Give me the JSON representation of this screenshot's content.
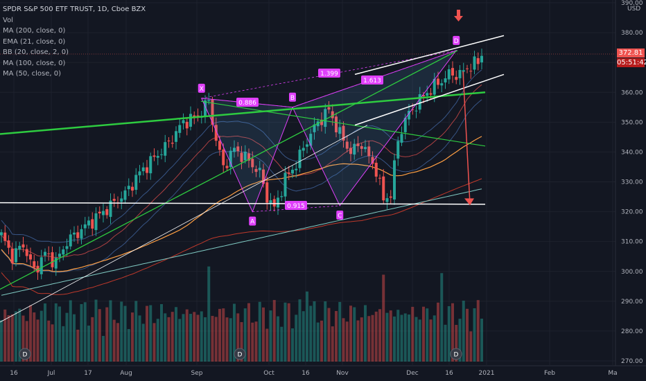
{
  "legend": {
    "title": "SPDR S&P 500 ETF TRUST, 1D, Cboe BZX",
    "vol": "Vol",
    "ma200": "MA (200, close, 0)",
    "ema21": "EMA (21, close, 0)",
    "bb": "BB (20, close, 2, 0)",
    "ma100": "MA (100, close, 0)",
    "ma50": "MA (50, close, 0)"
  },
  "axis": {
    "currency": "USD",
    "last_price": "372.81",
    "countdown": "05:51:42"
  },
  "colors": {
    "background": "#131722",
    "up": "#26a69a",
    "down": "#ef5350",
    "pattern": "#e040fb",
    "trend_green": "#2ecc40",
    "countdown_bg": "#b71c1c"
  },
  "chart_data": {
    "type": "candlestick",
    "title": "SPDR S&P 500 ETF TRUST, 1D, Cboe BZX",
    "ylim": [
      268,
      392
    ],
    "y_ticks": [
      270,
      280,
      290,
      300,
      310,
      320,
      330,
      340,
      350,
      360,
      370,
      380,
      390
    ],
    "x_ticks": [
      "16",
      "Jul",
      "17",
      "Aug",
      "Sep",
      "Oct",
      "16",
      "Nov",
      "Dec",
      "16",
      "2021",
      "Feb",
      "Ma"
    ],
    "harmonic_points": [
      {
        "label": "X",
        "value": 358
      },
      {
        "label": "A",
        "value": 320
      },
      {
        "label": "B",
        "value": 355
      },
      {
        "label": "C",
        "value": 322
      },
      {
        "label": "D",
        "value": 374
      }
    ],
    "ratios": [
      "0.886",
      "0.915",
      "1.399",
      "1.613"
    ],
    "event_markers": [
      "D",
      "D",
      "D"
    ],
    "price_levels": {
      "last": 372.81,
      "horizontal_support": 323,
      "target": 324
    }
  }
}
